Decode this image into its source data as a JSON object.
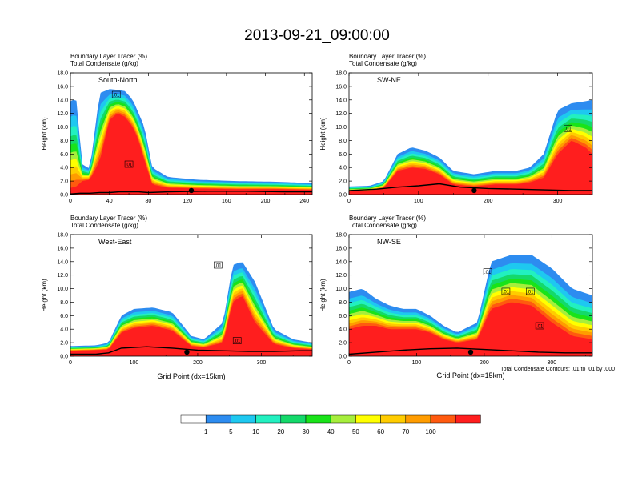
{
  "title": "2013-09-21_09:00:00",
  "colors": {
    "colorbar": [
      "#ffffff",
      "#2d8cf0",
      "#1ec8f0",
      "#22f0c0",
      "#14d96a",
      "#19e319",
      "#a6ee3c",
      "#ffff00",
      "#ffcc00",
      "#ff9c00",
      "#ff5a0f",
      "#ff1e1e"
    ],
    "terrain": "#000000",
    "contour": "#000000"
  },
  "colorbar_labels": [
    "1",
    "5",
    "10",
    "20",
    "30",
    "40",
    "50",
    "60",
    "70",
    "100"
  ],
  "footnote": "Total Condensate Contours: .01 to .01 by .000",
  "chart_data": [
    {
      "type": "heatmap",
      "label": "South-North",
      "title_lines": [
        "Boundary Layer Tracer    (%)",
        "Total Condensate    (g/kg)"
      ],
      "ylabel": "Height (km)",
      "xlabel": "",
      "xlim": [
        0,
        248
      ],
      "ylim": [
        0,
        18
      ],
      "xticks": [
        "0",
        "40",
        "80",
        "120",
        "160",
        "200",
        "240"
      ],
      "yticks": [
        "0.0",
        "2.0",
        "4.0",
        "6.0",
        "8.0",
        "10.0",
        "12.0",
        "14.0",
        "16.0",
        "18.0"
      ],
      "contour_labels": [
        {
          "x": 47,
          "y": 14.8,
          "text": ".01"
        },
        {
          "x": 60,
          "y": 4.5,
          "text": ".01"
        }
      ],
      "marker_x": 124,
      "tracer_profile": {
        "x": [
          0,
          6,
          12,
          20,
          30,
          40,
          48,
          56,
          64,
          70,
          76,
          84,
          100,
          130,
          170,
          210,
          248
        ],
        "top": [
          13.8,
          14.2,
          4.5,
          3.8,
          15.0,
          15.6,
          15.5,
          15.3,
          14.0,
          12.0,
          10.0,
          4.0,
          2.6,
          2.2,
          2.0,
          1.9,
          1.7
        ],
        "core": [
          1.0,
          1.2,
          2.0,
          2.2,
          5.0,
          11.0,
          12.0,
          11.5,
          10.0,
          8.0,
          5.0,
          1.5,
          1.0,
          0.9,
          0.8,
          0.8,
          0.7
        ]
      },
      "terrain": {
        "x": [
          0,
          10,
          20,
          30,
          40,
          50,
          60,
          70,
          80,
          100,
          140,
          180,
          220,
          248
        ],
        "y": [
          0.1,
          0.2,
          0.2,
          0.3,
          0.3,
          0.4,
          0.4,
          0.4,
          0.3,
          0.4,
          0.5,
          0.5,
          0.4,
          0.4
        ]
      }
    },
    {
      "type": "heatmap",
      "label": "SW-NE",
      "title_lines": [
        "Boundary Layer Tracer    (%)",
        "Total Condensate    (g/kg)"
      ],
      "ylabel": "Height (km)",
      "xlabel": "",
      "xlim": [
        0,
        350
      ],
      "ylim": [
        0,
        18
      ],
      "xticks": [
        "0",
        "100",
        "200",
        "300"
      ],
      "yticks": [
        "0.0",
        "2.0",
        "4.0",
        "6.0",
        "8.0",
        "10.0",
        "12.0",
        "14.0",
        "16.0",
        "18.0"
      ],
      "contour_labels": [
        {
          "x": 315,
          "y": 9.8,
          "text": ".01"
        }
      ],
      "marker_x": 180,
      "tracer_profile": {
        "x": [
          0,
          30,
          50,
          70,
          90,
          110,
          130,
          150,
          180,
          210,
          240,
          260,
          280,
          300,
          320,
          340,
          350
        ],
        "top": [
          1.2,
          1.3,
          2.0,
          6.0,
          7.0,
          6.5,
          5.5,
          3.5,
          3.0,
          3.5,
          3.5,
          4.0,
          6.0,
          12.5,
          13.5,
          13.8,
          14.0
        ],
        "core": [
          0.5,
          0.6,
          1.0,
          3.5,
          4.0,
          3.8,
          3.0,
          1.5,
          1.2,
          1.5,
          1.5,
          1.8,
          2.5,
          6.0,
          8.0,
          7.0,
          6.0
        ]
      },
      "terrain": {
        "x": [
          0,
          40,
          70,
          100,
          130,
          160,
          200,
          240,
          280,
          320,
          350
        ],
        "y": [
          0.6,
          0.8,
          1.1,
          1.3,
          1.6,
          1.1,
          0.9,
          0.8,
          0.7,
          0.6,
          0.6
        ]
      }
    },
    {
      "type": "heatmap",
      "label": "West-East",
      "title_lines": [
        "Boundary Layer Tracer    (%)",
        "Total Condensate    (g/kg)"
      ],
      "ylabel": "Height (km)",
      "xlabel": "Grid Point (dx=15km)",
      "xlim": [
        0,
        380
      ],
      "ylim": [
        0,
        18
      ],
      "xticks": [
        "0",
        "100",
        "200",
        "300"
      ],
      "yticks": [
        "0.0",
        "2.0",
        "4.0",
        "6.0",
        "8.0",
        "10.0",
        "12.0",
        "14.0",
        "16.0",
        "18.0"
      ],
      "contour_labels": [
        {
          "x": 232,
          "y": 13.5,
          "text": ".01"
        },
        {
          "x": 262,
          "y": 2.3,
          "text": ".01"
        }
      ],
      "marker_x": 183,
      "tracer_profile": {
        "x": [
          0,
          40,
          60,
          80,
          100,
          130,
          160,
          190,
          210,
          240,
          255,
          270,
          290,
          320,
          350,
          380
        ],
        "top": [
          1.5,
          1.6,
          2.0,
          6.0,
          7.0,
          7.2,
          6.5,
          3.0,
          2.5,
          5.0,
          13.5,
          14.0,
          11.0,
          4.0,
          2.5,
          2.0
        ],
        "core": [
          0.8,
          0.9,
          1.0,
          3.5,
          4.2,
          4.5,
          3.8,
          1.5,
          1.3,
          2.0,
          8.0,
          9.0,
          5.0,
          1.8,
          1.2,
          1.0
        ]
      },
      "terrain": {
        "x": [
          0,
          40,
          60,
          80,
          120,
          160,
          200,
          240,
          280,
          320,
          360,
          380
        ],
        "y": [
          0.3,
          0.3,
          0.5,
          1.2,
          1.4,
          1.2,
          0.9,
          0.8,
          0.7,
          0.7,
          0.8,
          0.8
        ]
      }
    },
    {
      "type": "heatmap",
      "label": "NW-SE",
      "title_lines": [
        "Boundary Layer Tracer    (%)",
        "Total Condensate    (g/kg)"
      ],
      "ylabel": "Height (km)",
      "xlabel": "Grid Point (dx=15km)",
      "xlim": [
        0,
        360
      ],
      "ylim": [
        0,
        18
      ],
      "xticks": [
        "0",
        "100",
        "200",
        "300"
      ],
      "yticks": [
        "0.0",
        "2.0",
        "4.0",
        "6.0",
        "8.0",
        "10.0",
        "12.0",
        "14.0",
        "16.0",
        "18.0"
      ],
      "contour_labels": [
        {
          "x": 205,
          "y": 12.5,
          "text": ".01"
        },
        {
          "x": 232,
          "y": 9.6,
          "text": ".01"
        },
        {
          "x": 268,
          "y": 9.6,
          "text": ".01"
        },
        {
          "x": 282,
          "y": 4.5,
          "text": ".01"
        }
      ],
      "marker_x": 180,
      "tracer_profile": {
        "x": [
          0,
          20,
          40,
          60,
          80,
          100,
          120,
          140,
          160,
          190,
          210,
          240,
          270,
          300,
          330,
          360
        ],
        "top": [
          9.5,
          10.0,
          8.5,
          7.5,
          7.0,
          7.0,
          6.0,
          4.5,
          3.5,
          5.0,
          14.0,
          15.0,
          15.0,
          13.0,
          10.0,
          9.0
        ],
        "core": [
          4.0,
          4.5,
          4.5,
          4.0,
          4.0,
          4.0,
          3.5,
          2.5,
          2.0,
          2.5,
          7.0,
          8.0,
          7.5,
          5.0,
          3.0,
          2.5
        ]
      },
      "terrain": {
        "x": [
          0,
          40,
          80,
          120,
          160,
          200,
          240,
          280,
          320,
          360
        ],
        "y": [
          0.3,
          0.6,
          0.9,
          1.1,
          1.2,
          1.0,
          0.8,
          0.6,
          0.5,
          0.5
        ]
      }
    }
  ]
}
